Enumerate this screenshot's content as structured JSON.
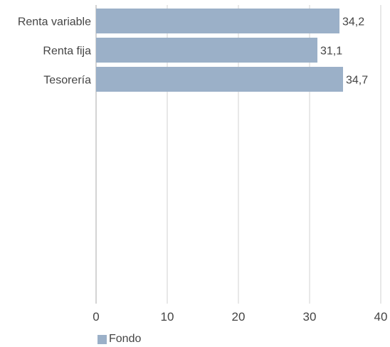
{
  "chart_data": {
    "type": "bar",
    "orientation": "horizontal",
    "categories": [
      "Renta variable",
      "Renta fija",
      "Tesorería"
    ],
    "series": [
      {
        "name": "Fondo",
        "values": [
          34.2,
          31.1,
          34.7
        ],
        "labels": [
          "34,2",
          "31,1",
          "34,7"
        ]
      }
    ],
    "xlim": [
      0,
      40
    ],
    "xticks": [
      0,
      10,
      20,
      30,
      40
    ],
    "xtick_labels": [
      "0",
      "10",
      "20",
      "30",
      "40"
    ],
    "grid": "vertical",
    "legend_position": "bottom-left",
    "colors": {
      "bar": "#9bb0c8",
      "grid": "#d0d0d0",
      "axis": "#aaaaaa",
      "text": "#444444"
    }
  }
}
